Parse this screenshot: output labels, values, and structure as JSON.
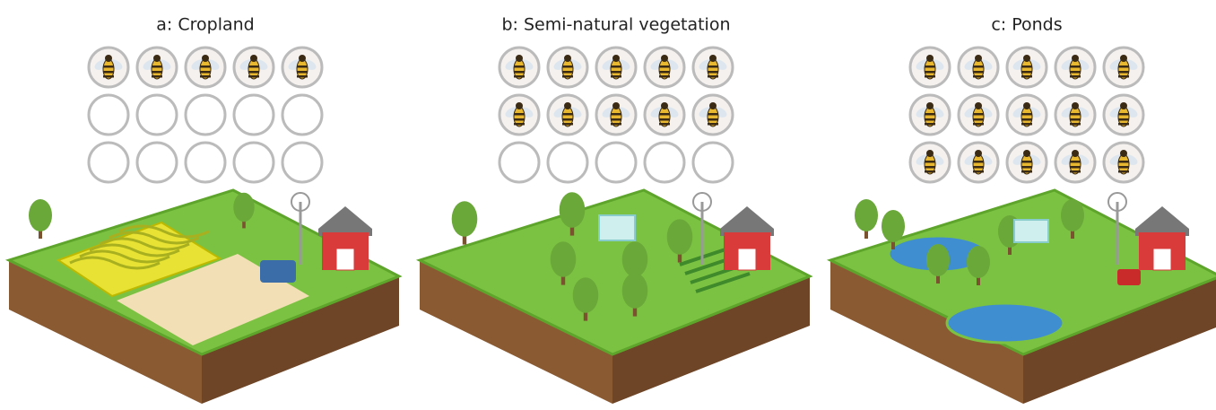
{
  "panels": [
    {
      "title": "a: Cropland",
      "bees": 5,
      "slots": 15
    },
    {
      "title": "b: Semi-natural vegetation",
      "bees": 10,
      "slots": 15
    },
    {
      "title": "c: Ponds",
      "bees": 15,
      "slots": 15
    }
  ]
}
